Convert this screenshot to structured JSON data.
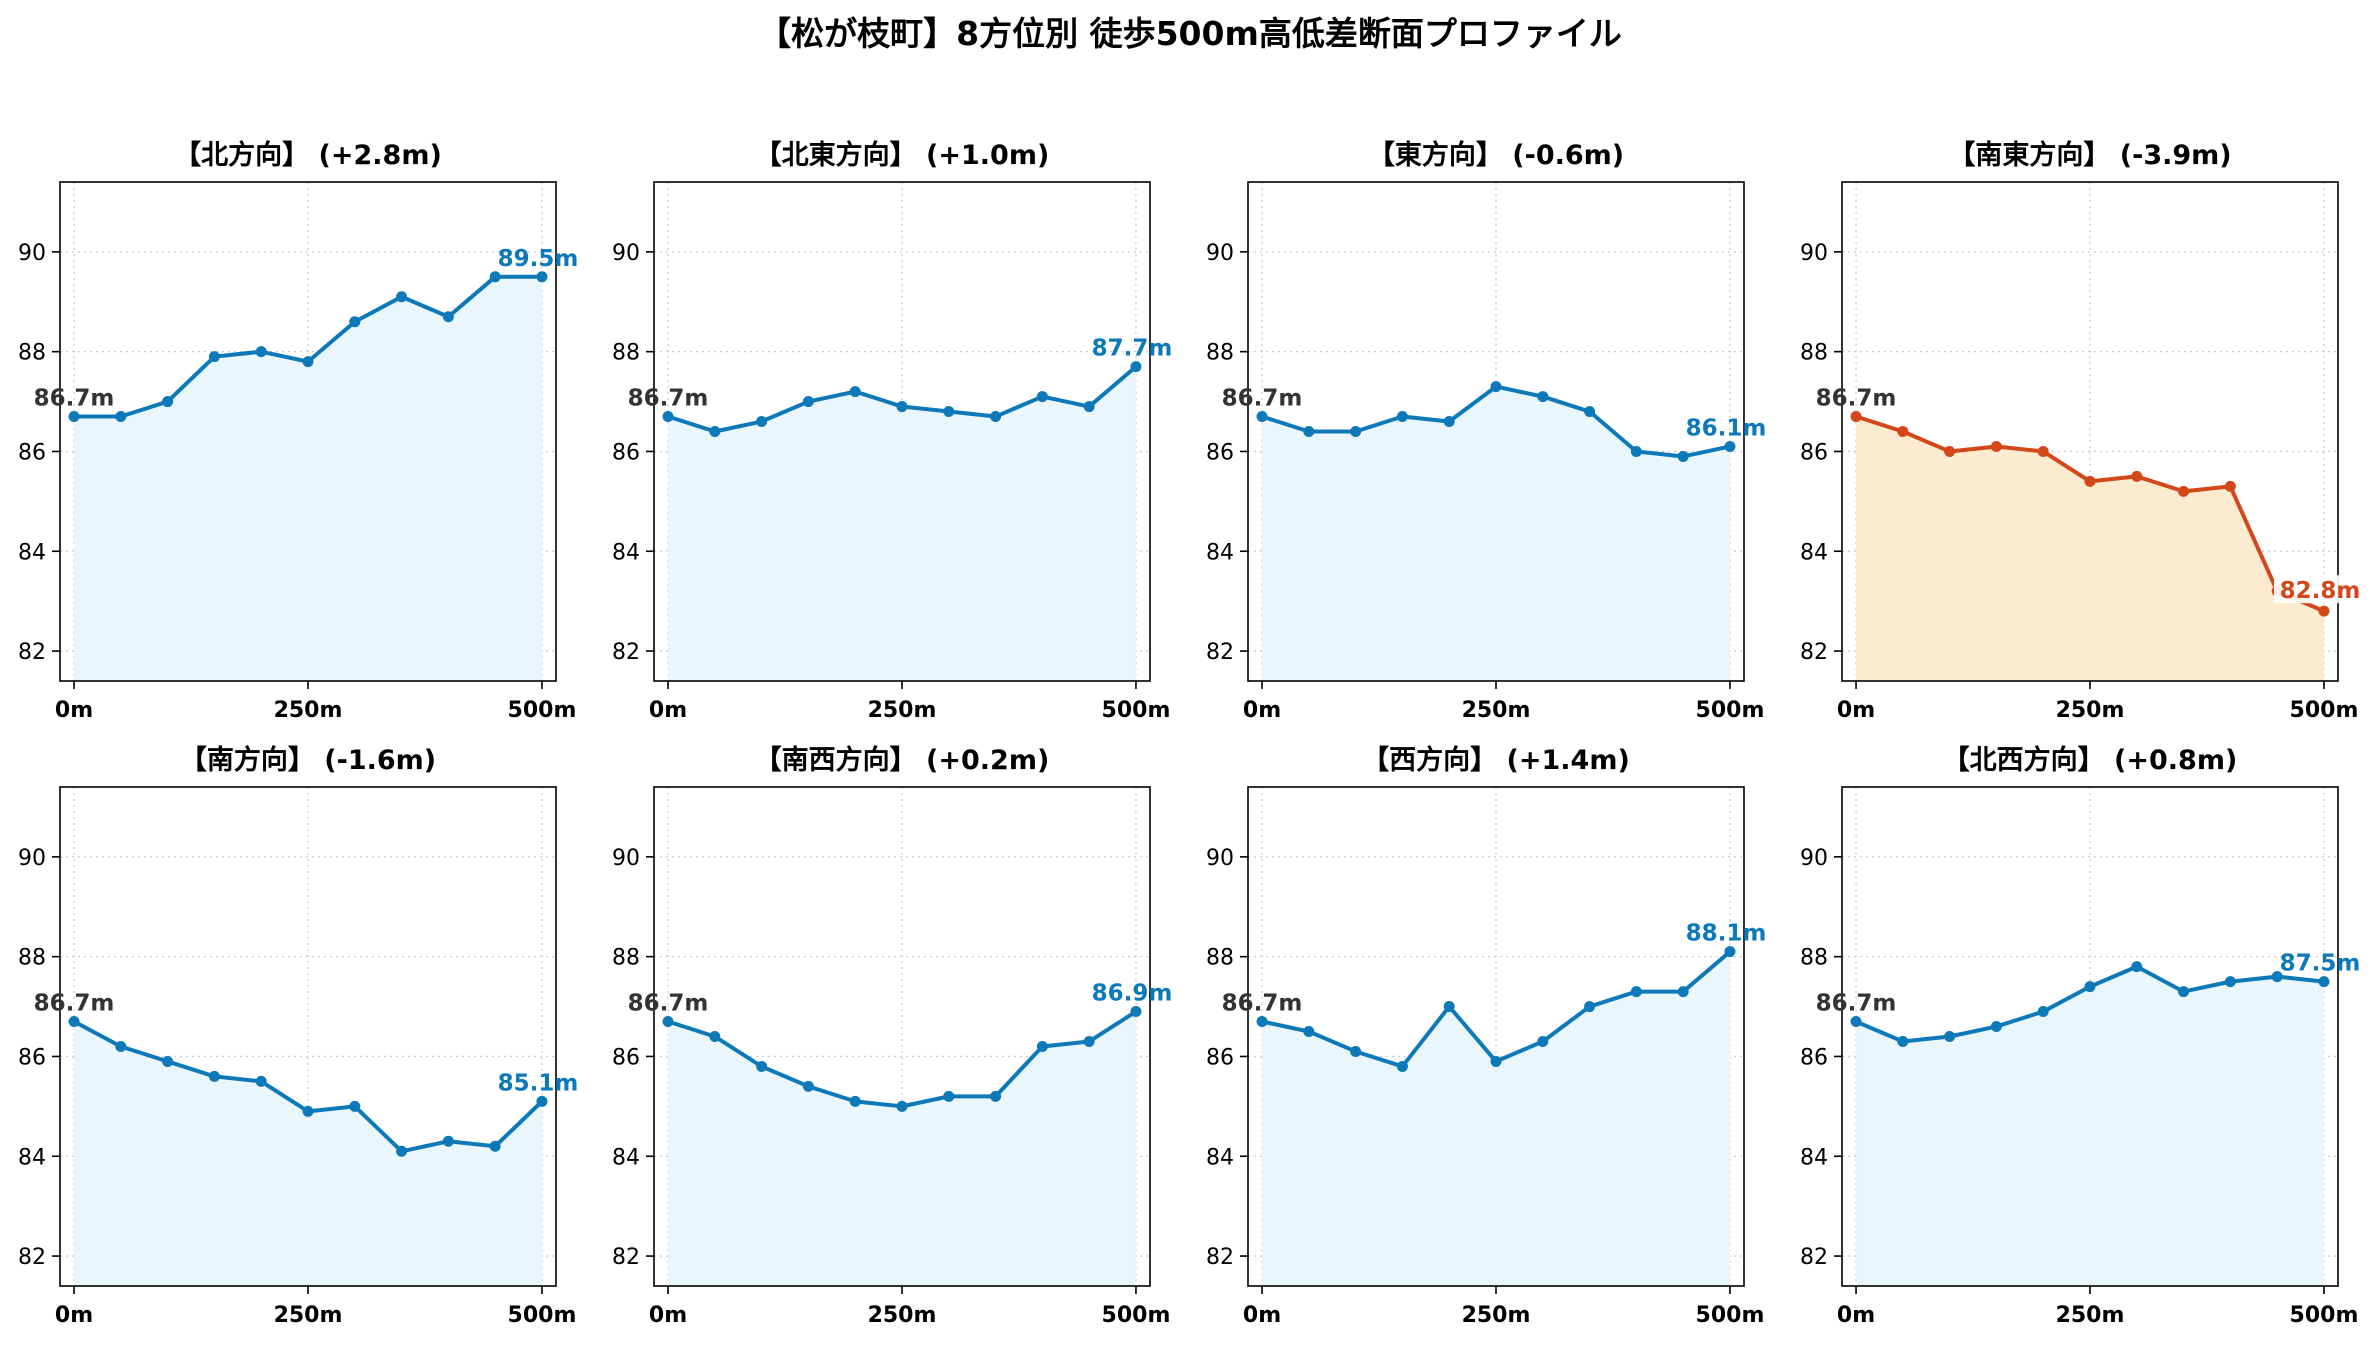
{
  "title": "【松が枝町】8方位別 徒歩500m高低差断面プロファイル",
  "colors": {
    "normal_line": "#0d79b8",
    "normal_fill": "#e9f6fb",
    "warn_line": "#d4471a",
    "warn_fill": "#fdebd0",
    "start_label": "#333333",
    "grid": "#cccccc",
    "axis": "#000000"
  },
  "chart_data": [
    {
      "type": "area",
      "title": "【北方向】 (+2.8m)",
      "x": [
        0,
        50,
        100,
        150,
        200,
        250,
        300,
        350,
        400,
        450,
        500
      ],
      "values": [
        86.7,
        86.7,
        87.0,
        87.9,
        88.0,
        87.8,
        88.6,
        89.1,
        88.7,
        89.5,
        89.5
      ],
      "start_label": "86.7m",
      "end_label": "89.5m",
      "highlight": false,
      "xlim": [
        -15,
        515
      ],
      "ylim": [
        81.4,
        91.4
      ],
      "yticks": [
        82,
        84,
        86,
        88,
        90
      ],
      "xticks": [
        0,
        250,
        500
      ],
      "xtick_labels": [
        "0m",
        "250m",
        "500m"
      ],
      "grid": true
    },
    {
      "type": "area",
      "title": "【北東方向】 (+1.0m)",
      "x": [
        0,
        50,
        100,
        150,
        200,
        250,
        300,
        350,
        400,
        450,
        500
      ],
      "values": [
        86.7,
        86.4,
        86.6,
        87.0,
        87.2,
        86.9,
        86.8,
        86.7,
        87.1,
        86.9,
        87.7
      ],
      "start_label": "86.7m",
      "end_label": "87.7m",
      "highlight": false,
      "xlim": [
        -15,
        515
      ],
      "ylim": [
        81.4,
        91.4
      ],
      "yticks": [
        82,
        84,
        86,
        88,
        90
      ],
      "xticks": [
        0,
        250,
        500
      ],
      "xtick_labels": [
        "0m",
        "250m",
        "500m"
      ],
      "grid": true
    },
    {
      "type": "area",
      "title": "【東方向】 (-0.6m)",
      "x": [
        0,
        50,
        100,
        150,
        200,
        250,
        300,
        350,
        400,
        450,
        500
      ],
      "values": [
        86.7,
        86.4,
        86.4,
        86.7,
        86.6,
        87.3,
        87.1,
        86.8,
        86.0,
        85.9,
        86.1
      ],
      "start_label": "86.7m",
      "end_label": "86.1m",
      "highlight": false,
      "xlim": [
        -15,
        515
      ],
      "ylim": [
        81.4,
        91.4
      ],
      "yticks": [
        82,
        84,
        86,
        88,
        90
      ],
      "xticks": [
        0,
        250,
        500
      ],
      "xtick_labels": [
        "0m",
        "250m",
        "500m"
      ],
      "grid": true
    },
    {
      "type": "area",
      "title": "【南東方向】 (-3.9m)",
      "x": [
        0,
        50,
        100,
        150,
        200,
        250,
        300,
        350,
        400,
        450,
        500
      ],
      "values": [
        86.7,
        86.4,
        86.0,
        86.1,
        86.0,
        85.4,
        85.5,
        85.2,
        85.3,
        83.2,
        82.8
      ],
      "start_label": "86.7m",
      "end_label": "82.8m",
      "highlight": true,
      "xlim": [
        -15,
        515
      ],
      "ylim": [
        81.4,
        91.4
      ],
      "yticks": [
        82,
        84,
        86,
        88,
        90
      ],
      "xticks": [
        0,
        250,
        500
      ],
      "xtick_labels": [
        "0m",
        "250m",
        "500m"
      ],
      "grid": true
    },
    {
      "type": "area",
      "title": "【南方向】 (-1.6m)",
      "x": [
        0,
        50,
        100,
        150,
        200,
        250,
        300,
        350,
        400,
        450,
        500
      ],
      "values": [
        86.7,
        86.2,
        85.9,
        85.6,
        85.5,
        84.9,
        85.0,
        84.1,
        84.3,
        84.2,
        85.1
      ],
      "start_label": "86.7m",
      "end_label": "85.1m",
      "highlight": false,
      "xlim": [
        -15,
        515
      ],
      "ylim": [
        81.4,
        91.4
      ],
      "yticks": [
        82,
        84,
        86,
        88,
        90
      ],
      "xticks": [
        0,
        250,
        500
      ],
      "xtick_labels": [
        "0m",
        "250m",
        "500m"
      ],
      "grid": true
    },
    {
      "type": "area",
      "title": "【南西方向】 (+0.2m)",
      "x": [
        0,
        50,
        100,
        150,
        200,
        250,
        300,
        350,
        400,
        450,
        500
      ],
      "values": [
        86.7,
        86.4,
        85.8,
        85.4,
        85.1,
        85.0,
        85.2,
        85.2,
        86.2,
        86.3,
        86.9
      ],
      "start_label": "86.7m",
      "end_label": "86.9m",
      "highlight": false,
      "xlim": [
        -15,
        515
      ],
      "ylim": [
        81.4,
        91.4
      ],
      "yticks": [
        82,
        84,
        86,
        88,
        90
      ],
      "xticks": [
        0,
        250,
        500
      ],
      "xtick_labels": [
        "0m",
        "250m",
        "500m"
      ],
      "grid": true
    },
    {
      "type": "area",
      "title": "【西方向】 (+1.4m)",
      "x": [
        0,
        50,
        100,
        150,
        200,
        250,
        300,
        350,
        400,
        450,
        500
      ],
      "values": [
        86.7,
        86.5,
        86.1,
        85.8,
        87.0,
        85.9,
        86.3,
        87.0,
        87.3,
        87.3,
        88.1
      ],
      "start_label": "86.7m",
      "end_label": "88.1m",
      "highlight": false,
      "xlim": [
        -15,
        515
      ],
      "ylim": [
        81.4,
        91.4
      ],
      "yticks": [
        82,
        84,
        86,
        88,
        90
      ],
      "xticks": [
        0,
        250,
        500
      ],
      "xtick_labels": [
        "0m",
        "250m",
        "500m"
      ],
      "grid": true
    },
    {
      "type": "area",
      "title": "【北西方向】 (+0.8m)",
      "x": [
        0,
        50,
        100,
        150,
        200,
        250,
        300,
        350,
        400,
        450,
        500
      ],
      "values": [
        86.7,
        86.3,
        86.4,
        86.6,
        86.9,
        87.4,
        87.8,
        87.3,
        87.5,
        87.6,
        87.5
      ],
      "start_label": "86.7m",
      "end_label": "87.5m",
      "highlight": false,
      "xlim": [
        -15,
        515
      ],
      "ylim": [
        81.4,
        91.4
      ],
      "yticks": [
        82,
        84,
        86,
        88,
        90
      ],
      "xticks": [
        0,
        250,
        500
      ],
      "xtick_labels": [
        "0m",
        "250m",
        "500m"
      ],
      "grid": true
    }
  ]
}
